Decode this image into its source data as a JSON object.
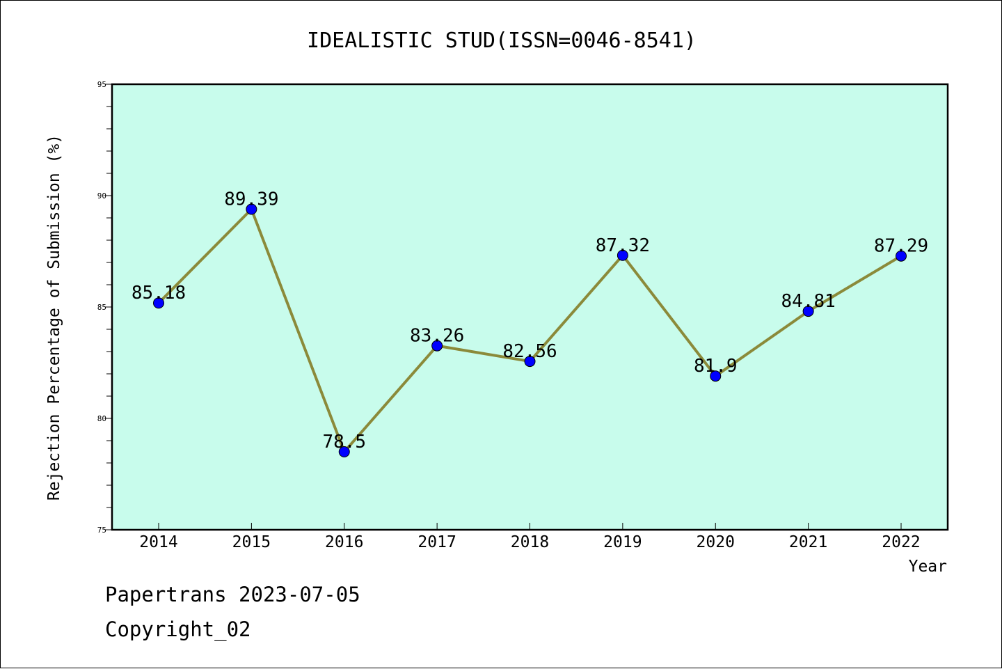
{
  "chart_data": {
    "type": "line",
    "title": "IDEALISTIC STUD(ISSN=0046-8541)",
    "xlabel": "Year",
    "ylabel": "Rejection Percentage of Submission (%)",
    "categories": [
      "2014",
      "2015",
      "2016",
      "2017",
      "2018",
      "2019",
      "2020",
      "2021",
      "2022"
    ],
    "values": [
      85.18,
      89.39,
      78.5,
      83.26,
      82.56,
      87.32,
      81.9,
      84.81,
      87.29
    ],
    "data_labels": [
      "85.18",
      "89.39",
      "78.5",
      "83.26",
      "82.56",
      "87.32",
      "81.9",
      "84.81",
      "87.29"
    ],
    "ylim": [
      75,
      95
    ],
    "yticks": [
      "75",
      "80",
      "85",
      "90",
      "95"
    ],
    "grid": false,
    "colors": {
      "plot_background": "#c8fcec",
      "line": "#8b8a3a",
      "marker": "#0000ff"
    }
  },
  "footer": {
    "credit": "Papertrans 2023-07-05",
    "copyright": "Copyright_02"
  }
}
